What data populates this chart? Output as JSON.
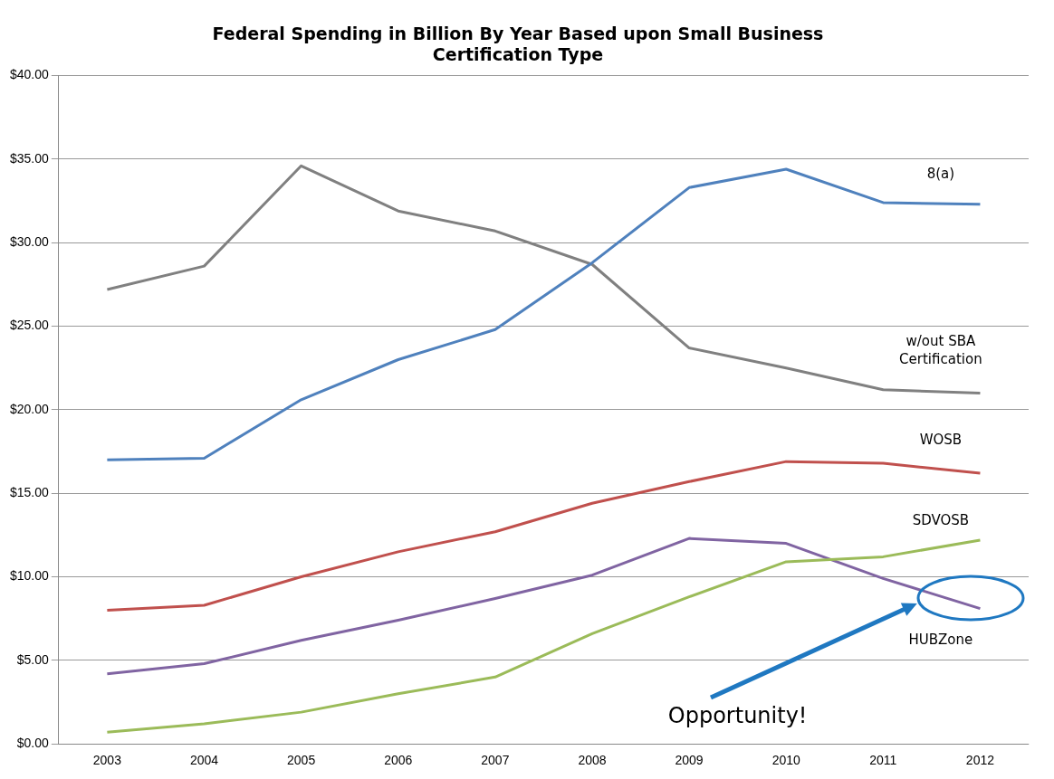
{
  "chart_data": {
    "type": "line",
    "title": "Federal Spending in Billion By Year Based upon Small Business Certification Type",
    "categories": [
      "2003",
      "2004",
      "2005",
      "2006",
      "2007",
      "2008",
      "2009",
      "2010",
      "2011",
      "2012"
    ],
    "series": [
      {
        "name": "8(a)",
        "color": "#4f81bd",
        "values": [
          17.0,
          17.1,
          20.6,
          23.0,
          24.8,
          28.8,
          33.3,
          34.4,
          32.4,
          32.3
        ]
      },
      {
        "name": "w/out  SBA Certification",
        "color": "#808080",
        "values": [
          27.2,
          28.6,
          34.6,
          31.9,
          30.7,
          28.7,
          23.7,
          22.5,
          21.2,
          21.0
        ]
      },
      {
        "name": "WOSB",
        "color": "#c0504d",
        "values": [
          8.0,
          8.3,
          10.0,
          11.5,
          12.7,
          14.4,
          15.7,
          16.9,
          16.8,
          16.2
        ]
      },
      {
        "name": "SDVOSB",
        "color": "#9bbb59",
        "values": [
          0.7,
          1.2,
          1.9,
          3.0,
          4.0,
          6.6,
          8.8,
          10.9,
          11.2,
          12.2
        ]
      },
      {
        "name": "HUBZone",
        "color": "#8064a2",
        "values": [
          4.2,
          4.8,
          6.2,
          7.4,
          8.7,
          10.1,
          12.3,
          12.0,
          9.9,
          8.1
        ]
      }
    ],
    "ylim": [
      0,
      40
    ],
    "yticks": [
      {
        "value": 0,
        "label": "$0.00"
      },
      {
        "value": 5,
        "label": "$5.00"
      },
      {
        "value": 10,
        "label": "$10.00"
      },
      {
        "value": 15,
        "label": "$15.00"
      },
      {
        "value": 20,
        "label": "$20.00"
      },
      {
        "value": 25,
        "label": "$25.00"
      },
      {
        "value": 30,
        "label": "$30.00"
      },
      {
        "value": 35,
        "label": "$35.00"
      },
      {
        "value": 40,
        "label": "$40.00"
      }
    ],
    "grid": "y",
    "legend": false,
    "marker": "none",
    "line_style": "solid",
    "annotations": [
      "Opportunity!"
    ]
  }
}
